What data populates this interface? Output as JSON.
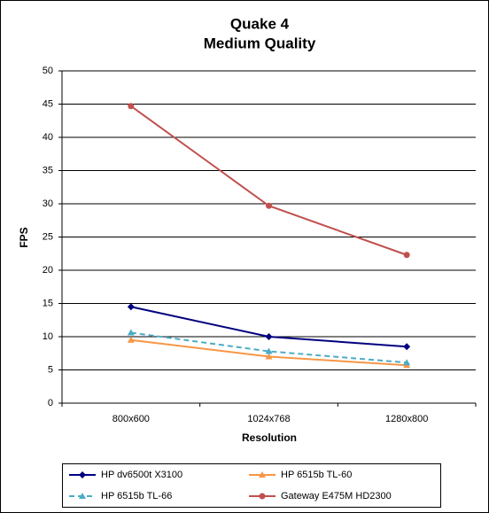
{
  "chart_data": {
    "type": "line",
    "title": "Quake 4",
    "subtitle": "Medium Quality",
    "x_label": "Resolution",
    "y_label": "FPS",
    "categories": [
      "800x600",
      "1024x768",
      "1280x800"
    ],
    "series": [
      {
        "name": "HP dv6500t X3100",
        "color": "#000080",
        "marker": "diamond",
        "dashed": false,
        "values": [
          14.5,
          10,
          8.5
        ]
      },
      {
        "name": "HP 6515b TL-60",
        "color": "#f79646",
        "marker": "triangle",
        "dashed": false,
        "values": [
          9.5,
          7,
          5.7
        ]
      },
      {
        "name": "HP 6515b TL-66",
        "color": "#4bacc6",
        "marker": "triangle",
        "dashed": true,
        "values": [
          10.6,
          7.8,
          6.1
        ]
      },
      {
        "name": "Gateway E475M HD2300",
        "color": "#c0504d",
        "marker": "circle",
        "dashed": false,
        "values": [
          44.7,
          29.7,
          22.3
        ]
      }
    ],
    "ylim": [
      0,
      50
    ],
    "yticks": [
      0,
      5,
      10,
      15,
      20,
      25,
      30,
      35,
      40,
      45,
      50
    ],
    "grid": true
  }
}
